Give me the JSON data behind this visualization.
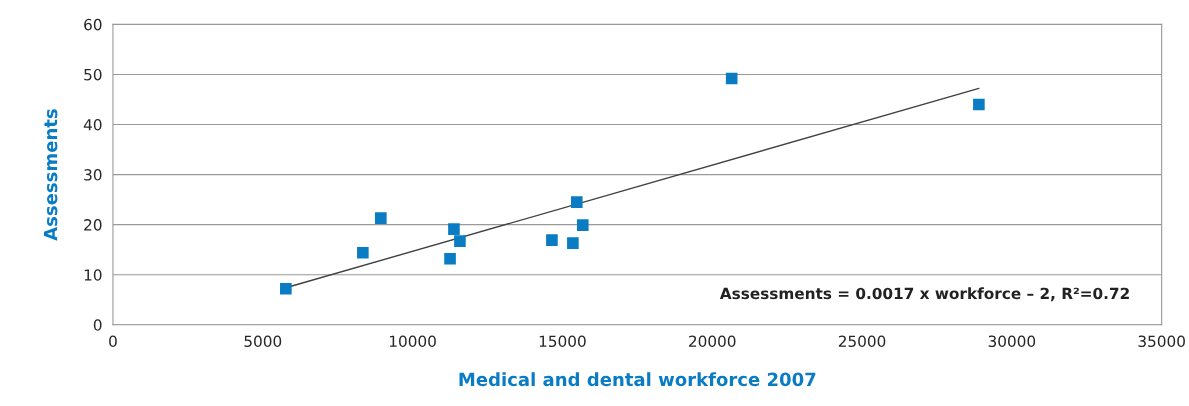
{
  "chart_data": {
    "type": "scatter",
    "xlabel": "Medical and dental workforce 2007",
    "ylabel": "Assessments",
    "xlim": [
      0,
      35000
    ],
    "xticks": [
      0,
      5000,
      10000,
      15000,
      20000,
      25000,
      30000,
      35000
    ],
    "ylim": [
      0,
      60
    ],
    "yticks": [
      0,
      10,
      20,
      30,
      40,
      50,
      60
    ],
    "grid": "y",
    "legend": false,
    "series": [
      {
        "color": "#0a7cc4",
        "marker": "square",
        "x": [
          5770,
          8340,
          8940,
          11380,
          11250,
          11580,
          14650,
          15480,
          15350,
          15680,
          20650,
          28900
        ],
        "values": [
          7.2,
          14.4,
          21.3,
          19.1,
          13.2,
          16.7,
          16.9,
          24.5,
          16.3,
          19.9,
          49.2,
          44.0
        ]
      },
      {
        "type": "line",
        "color": "#404040",
        "marker": "none",
        "line_style": "solid",
        "x": [
          5770,
          28900
        ],
        "values": [
          7.4,
          47.2
        ]
      }
    ],
    "annotations": [
      "Assessments = 0.0017 x workforce – 2, R²=0.72"
    ]
  }
}
